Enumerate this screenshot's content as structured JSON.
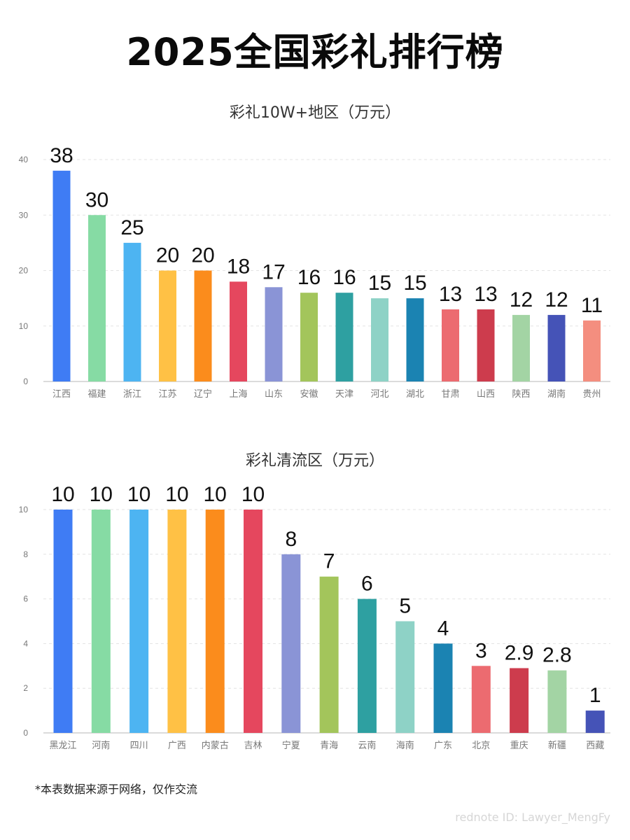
{
  "page": {
    "title": "2025全国彩礼排行榜",
    "footnote": "*本表数据来源于网络，仅作交流",
    "watermark": "rednote ID: Lawyer_MengFy"
  },
  "chart_data": [
    {
      "type": "bar",
      "title": "彩礼10W+地区（万元）",
      "xlabel": "",
      "ylabel": "",
      "ylim": [
        0,
        40
      ],
      "yticks": [
        0,
        10,
        20,
        30,
        40
      ],
      "grid": true,
      "categories": [
        "江西",
        "福建",
        "浙江",
        "江苏",
        "辽宁",
        "上海",
        "山东",
        "安徽",
        "天津",
        "河北",
        "湖北",
        "甘肃",
        "山西",
        "陕西",
        "湖南",
        "贵州"
      ],
      "values": [
        38,
        30,
        25,
        20,
        20,
        18,
        17,
        16,
        16,
        15,
        15,
        13,
        13,
        12,
        12,
        11
      ],
      "value_labels": [
        "38",
        "30",
        "25",
        "20",
        "20",
        "18",
        "17",
        "16",
        "16",
        "15",
        "15",
        "13",
        "13",
        "12",
        "12",
        "11"
      ],
      "colors": [
        "#3f7cf4",
        "#86dba4",
        "#4db4f2",
        "#ffc145",
        "#fb8c1c",
        "#e5475e",
        "#8a94d6",
        "#a3c55b",
        "#2ea0a1",
        "#8ed2c6",
        "#1b83b2",
        "#ec6b70",
        "#cd3c4d",
        "#a3d4a4",
        "#4553b7",
        "#f48e7f"
      ]
    },
    {
      "type": "bar",
      "title": "彩礼清流区（万元）",
      "xlabel": "",
      "ylabel": "",
      "ylim": [
        0,
        10
      ],
      "yticks": [
        0,
        2,
        4,
        6,
        8,
        10
      ],
      "grid": true,
      "categories": [
        "黑龙江",
        "河南",
        "四川",
        "广西",
        "内蒙古",
        "吉林",
        "宁夏",
        "青海",
        "云南",
        "海南",
        "广东",
        "北京",
        "重庆",
        "新疆",
        "西藏"
      ],
      "values": [
        10,
        10,
        10,
        10,
        10,
        10,
        8,
        7,
        6,
        5,
        4,
        3,
        2.9,
        2.8,
        1
      ],
      "value_labels": [
        "10",
        "10",
        "10",
        "10",
        "10",
        "10",
        "8",
        "7",
        "6",
        "5",
        "4",
        "3",
        "2.9",
        "2.8",
        "1"
      ],
      "colors": [
        "#3f7cf4",
        "#86dba4",
        "#4db4f2",
        "#ffc145",
        "#fb8c1c",
        "#e5475e",
        "#8a94d6",
        "#a3c55b",
        "#2ea0a1",
        "#8ed2c6",
        "#1b83b2",
        "#ec6b70",
        "#cd3c4d",
        "#a3d4a4",
        "#4553b7"
      ]
    }
  ]
}
